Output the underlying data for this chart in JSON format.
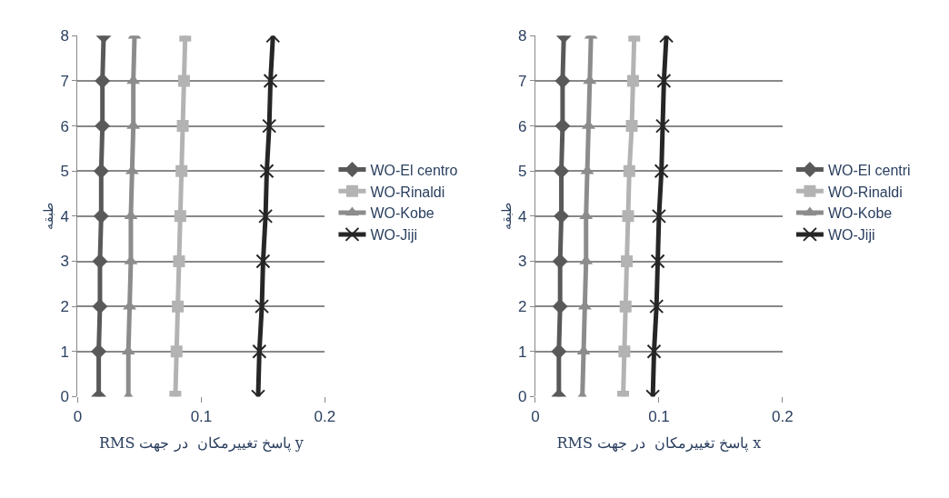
{
  "chart_data": [
    {
      "type": "line",
      "xlabel": "RMS پاسخ تغییرمکان  در جهت y",
      "ylabel": "طبقه",
      "xlim": [
        0,
        0.2
      ],
      "xticks": [
        0,
        0.1,
        0.2
      ],
      "ylim": [
        0,
        8
      ],
      "yticks": [
        0,
        1,
        2,
        3,
        4,
        5,
        6,
        7,
        8
      ],
      "grid": "y",
      "legend": "right",
      "series": [
        {
          "name": "WO-El centro",
          "color": "#595959",
          "marker": "diamond",
          "x": [
            0.017,
            0.017,
            0.018,
            0.018,
            0.019,
            0.019,
            0.02,
            0.02,
            0.021
          ],
          "values": [
            0,
            1,
            2,
            3,
            4,
            5,
            6,
            7,
            8
          ]
        },
        {
          "name": "WO-Rinaldi",
          "color": "#b3b3b3",
          "marker": "square",
          "x": [
            0.079,
            0.08,
            0.081,
            0.082,
            0.083,
            0.084,
            0.085,
            0.086,
            0.087
          ],
          "values": [
            0,
            1,
            2,
            3,
            4,
            5,
            6,
            7,
            8
          ]
        },
        {
          "name": "WO-Kobe",
          "color": "#8c8c8c",
          "marker": "triangle",
          "x": [
            0.041,
            0.041,
            0.042,
            0.043,
            0.043,
            0.044,
            0.045,
            0.045,
            0.046
          ],
          "values": [
            0,
            1,
            2,
            3,
            4,
            5,
            6,
            7,
            8
          ]
        },
        {
          "name": "WO-Jiji",
          "color": "#262626",
          "marker": "cross",
          "x": [
            0.146,
            0.147,
            0.149,
            0.15,
            0.152,
            0.153,
            0.155,
            0.156,
            0.158
          ],
          "values": [
            0,
            1,
            2,
            3,
            4,
            5,
            6,
            7,
            8
          ]
        }
      ]
    },
    {
      "type": "line",
      "xlabel": "RMS پاسخ تغییرمکان  در جهت x",
      "ylabel": "طبقه",
      "xlim": [
        0,
        0.2
      ],
      "xticks": [
        0,
        0.1,
        0.2
      ],
      "ylim": [
        0,
        8
      ],
      "yticks": [
        0,
        1,
        2,
        3,
        4,
        5,
        6,
        7,
        8
      ],
      "grid": "y",
      "legend": "right",
      "series": [
        {
          "name": "WO-El centri",
          "color": "#595959",
          "marker": "diamond",
          "x": [
            0.019,
            0.019,
            0.02,
            0.02,
            0.021,
            0.021,
            0.022,
            0.022,
            0.023
          ],
          "values": [
            0,
            1,
            2,
            3,
            4,
            5,
            6,
            7,
            8
          ]
        },
        {
          "name": "WO-Rinaldi",
          "color": "#b3b3b3",
          "marker": "square",
          "x": [
            0.071,
            0.072,
            0.073,
            0.074,
            0.075,
            0.076,
            0.078,
            0.079,
            0.08
          ],
          "values": [
            0,
            1,
            2,
            3,
            4,
            5,
            6,
            7,
            8
          ]
        },
        {
          "name": "WO-Kobe",
          "color": "#8c8c8c",
          "marker": "triangle",
          "x": [
            0.038,
            0.039,
            0.04,
            0.041,
            0.041,
            0.042,
            0.043,
            0.044,
            0.045
          ],
          "values": [
            0,
            1,
            2,
            3,
            4,
            5,
            6,
            7,
            8
          ]
        },
        {
          "name": "WO-Jiji",
          "color": "#262626",
          "marker": "cross",
          "x": [
            0.095,
            0.096,
            0.098,
            0.099,
            0.1,
            0.102,
            0.103,
            0.104,
            0.106
          ],
          "values": [
            0,
            1,
            2,
            3,
            4,
            5,
            6,
            7,
            8
          ]
        }
      ]
    }
  ]
}
